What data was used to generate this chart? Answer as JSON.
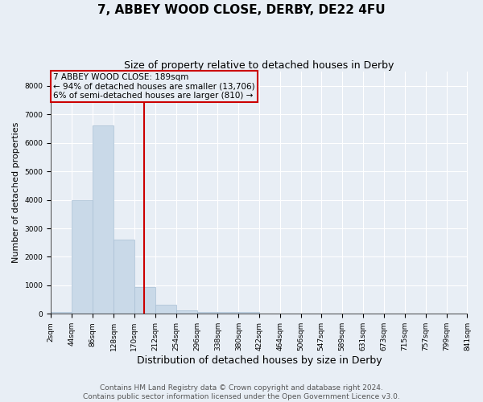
{
  "title": "7, ABBEY WOOD CLOSE, DERBY, DE22 4FU",
  "subtitle": "Size of property relative to detached houses in Derby",
  "xlabel": "Distribution of detached houses by size in Derby",
  "ylabel": "Number of detached properties",
  "bin_edges": [
    2,
    44,
    86,
    128,
    170,
    212,
    254,
    296,
    338,
    380,
    422,
    464,
    506,
    547,
    589,
    631,
    673,
    715,
    757,
    799,
    841
  ],
  "bar_heights": [
    70,
    4000,
    6600,
    2600,
    950,
    320,
    130,
    70,
    60,
    60,
    0,
    0,
    0,
    0,
    0,
    0,
    0,
    0,
    0,
    0
  ],
  "bar_color": "#c9d9e8",
  "bar_edge_color": "#a8bfd4",
  "background_color": "#e8eef5",
  "grid_color": "#ffffff",
  "vline_x": 189,
  "vline_color": "#cc0000",
  "annotation_text": "7 ABBEY WOOD CLOSE: 189sqm\n← 94% of detached houses are smaller (13,706)\n6% of semi-detached houses are larger (810) →",
  "annotation_box_color": "#cc0000",
  "annotation_text_color": "#000000",
  "ylim": [
    0,
    8500
  ],
  "yticks": [
    0,
    1000,
    2000,
    3000,
    4000,
    5000,
    6000,
    7000,
    8000
  ],
  "tick_labels": [
    "2sqm",
    "44sqm",
    "86sqm",
    "128sqm",
    "170sqm",
    "212sqm",
    "254sqm",
    "296sqm",
    "338sqm",
    "380sqm",
    "422sqm",
    "464sqm",
    "506sqm",
    "547sqm",
    "589sqm",
    "631sqm",
    "673sqm",
    "715sqm",
    "757sqm",
    "799sqm",
    "841sqm"
  ],
  "footer_text": "Contains HM Land Registry data © Crown copyright and database right 2024.\nContains public sector information licensed under the Open Government Licence v3.0.",
  "title_fontsize": 11,
  "subtitle_fontsize": 9,
  "xlabel_fontsize": 9,
  "ylabel_fontsize": 8,
  "tick_fontsize": 6.5,
  "annotation_fontsize": 7.5,
  "footer_fontsize": 6.5
}
